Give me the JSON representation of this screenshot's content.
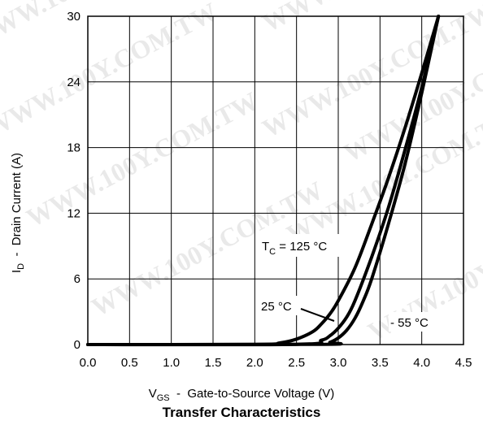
{
  "chart_data": {
    "type": "line",
    "title": "Transfer Characteristics",
    "xlabel": {
      "symbol": "V",
      "sub": "GS",
      "dash": "-",
      "text": "Gate-to-Source Voltage (V)"
    },
    "ylabel": {
      "symbol": "I",
      "sub": "D",
      "dash": "-",
      "text": "Drain Current (A)"
    },
    "xlim": [
      0.0,
      4.5
    ],
    "ylim": [
      0,
      30
    ],
    "xticks": [
      "0.0",
      "0.5",
      "1.0",
      "1.5",
      "2.0",
      "2.5",
      "3.0",
      "3.5",
      "4.0",
      "4.5"
    ],
    "yticks": [
      "0",
      "6",
      "12",
      "18",
      "24",
      "30"
    ],
    "grid": true,
    "series": [
      {
        "name": "T_C = 125 °C",
        "x": [
          0.0,
          2.0,
          2.3,
          2.5,
          2.7,
          2.8,
          2.9,
          3.0,
          3.2,
          3.4,
          3.6,
          3.8,
          4.0,
          4.2
        ],
        "y": [
          0,
          0.02,
          0.15,
          0.5,
          1.2,
          1.9,
          2.8,
          4.0,
          7.0,
          11.0,
          15.2,
          19.8,
          24.8,
          30
        ]
      },
      {
        "name": "25 °C",
        "x": [
          0.0,
          2.5,
          2.8,
          2.9,
          3.0,
          3.1,
          3.2,
          3.4,
          3.6,
          3.8,
          4.0,
          4.2
        ],
        "y": [
          0,
          0.02,
          0.4,
          0.8,
          1.5,
          2.5,
          4.0,
          8.0,
          12.5,
          17.8,
          23.5,
          30
        ]
      },
      {
        "name": "-55 °C",
        "x": [
          0.0,
          2.8,
          2.9,
          3.0,
          3.1,
          3.2,
          3.3,
          3.4,
          3.6,
          3.8,
          4.0,
          4.2
        ],
        "y": [
          0,
          0.02,
          0.2,
          0.6,
          1.3,
          2.4,
          4.0,
          6.0,
          11.0,
          16.5,
          23.0,
          30
        ]
      }
    ],
    "annotations": [
      {
        "label": "T",
        "sub": "C",
        "rest": " = 125 °C"
      },
      {
        "label": "25 °C"
      },
      {
        "label": "- 55 °C"
      }
    ]
  },
  "watermark": "WWW.100Y.COM.TW",
  "colors": {
    "line": "#000000",
    "grid": "#000000",
    "watermark": "#d8d8d8"
  }
}
